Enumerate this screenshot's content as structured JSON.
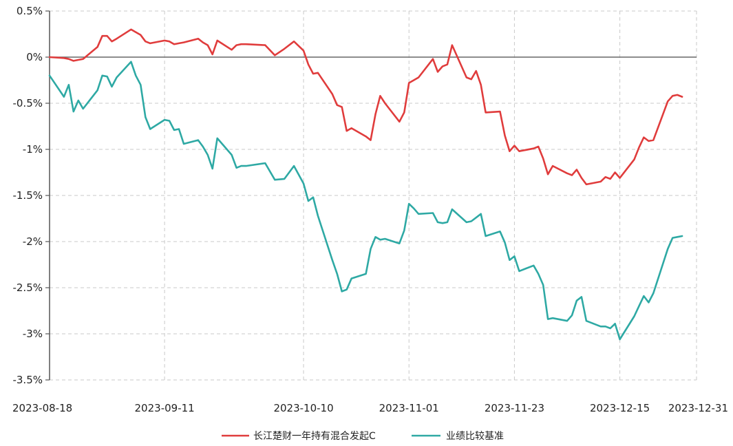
{
  "chart_data": {
    "type": "line",
    "title": "",
    "xlabel": "",
    "ylabel": "",
    "x_range": [
      "2023-08-18",
      "2023-12-31"
    ],
    "ylim": [
      -3.5,
      0.5
    ],
    "y_unit": "%",
    "grid": true,
    "legend_position": "bottom",
    "x_tick_labels": [
      "2023-08-18",
      "2023-09-11",
      "2023-10-10",
      "2023-11-01",
      "2023-11-23",
      "2023-12-15",
      "2023-12-31"
    ],
    "y_tick_labels": [
      "0.5%",
      "0%",
      "-0.5%",
      "-1%",
      "-1.5%",
      "-2%",
      "-2.5%",
      "-3%",
      "-3.5%"
    ],
    "y_ticks": [
      0.5,
      0,
      -0.5,
      -1,
      -1.5,
      -2,
      -2.5,
      -3,
      -3.5
    ],
    "colors": {
      "series1": "#e03c3c",
      "series2": "#2ea9a4"
    },
    "series": [
      {
        "name": "长江楚财一年持有混合发起C",
        "points": [
          [
            "2023-08-18",
            0.0
          ],
          [
            "2023-08-21",
            -0.01
          ],
          [
            "2023-08-22",
            -0.02
          ],
          [
            "2023-08-23",
            -0.04
          ],
          [
            "2023-08-24",
            -0.03
          ],
          [
            "2023-08-25",
            -0.02
          ],
          [
            "2023-08-28",
            0.11
          ],
          [
            "2023-08-29",
            0.23
          ],
          [
            "2023-08-30",
            0.23
          ],
          [
            "2023-08-31",
            0.17
          ],
          [
            "2023-09-01",
            0.2
          ],
          [
            "2023-09-04",
            0.3
          ],
          [
            "2023-09-05",
            0.27
          ],
          [
            "2023-09-06",
            0.24
          ],
          [
            "2023-09-07",
            0.17
          ],
          [
            "2023-09-08",
            0.15
          ],
          [
            "2023-09-11",
            0.18
          ],
          [
            "2023-09-12",
            0.17
          ],
          [
            "2023-09-13",
            0.14
          ],
          [
            "2023-09-14",
            0.15
          ],
          [
            "2023-09-15",
            0.16
          ],
          [
            "2023-09-18",
            0.2
          ],
          [
            "2023-09-19",
            0.16
          ],
          [
            "2023-09-20",
            0.13
          ],
          [
            "2023-09-21",
            0.03
          ],
          [
            "2023-09-22",
            0.18
          ],
          [
            "2023-09-25",
            0.08
          ],
          [
            "2023-09-26",
            0.13
          ],
          [
            "2023-09-27",
            0.14
          ],
          [
            "2023-09-28",
            0.14
          ],
          [
            "2023-10-02",
            0.13
          ],
          [
            "2023-10-04",
            0.02
          ],
          [
            "2023-10-06",
            0.09
          ],
          [
            "2023-10-08",
            0.17
          ],
          [
            "2023-10-10",
            0.07
          ],
          [
            "2023-10-11",
            -0.08
          ],
          [
            "2023-10-12",
            -0.18
          ],
          [
            "2023-10-13",
            -0.17
          ],
          [
            "2023-10-16",
            -0.4
          ],
          [
            "2023-10-17",
            -0.52
          ],
          [
            "2023-10-18",
            -0.54
          ],
          [
            "2023-10-19",
            -0.8
          ],
          [
            "2023-10-20",
            -0.77
          ],
          [
            "2023-10-23",
            -0.86
          ],
          [
            "2023-10-24",
            -0.9
          ],
          [
            "2023-10-25",
            -0.62
          ],
          [
            "2023-10-26",
            -0.42
          ],
          [
            "2023-10-27",
            -0.5
          ],
          [
            "2023-10-30",
            -0.7
          ],
          [
            "2023-10-31",
            -0.6
          ],
          [
            "2023-11-01",
            -0.28
          ],
          [
            "2023-11-02",
            -0.25
          ],
          [
            "2023-11-03",
            -0.22
          ],
          [
            "2023-11-06",
            -0.02
          ],
          [
            "2023-11-07",
            -0.16
          ],
          [
            "2023-11-08",
            -0.1
          ],
          [
            "2023-11-09",
            -0.08
          ],
          [
            "2023-11-10",
            0.13
          ],
          [
            "2023-11-13",
            -0.22
          ],
          [
            "2023-11-14",
            -0.24
          ],
          [
            "2023-11-15",
            -0.15
          ],
          [
            "2023-11-16",
            -0.3
          ],
          [
            "2023-11-17",
            -0.6
          ],
          [
            "2023-11-20",
            -0.59
          ],
          [
            "2023-11-21",
            -0.85
          ],
          [
            "2023-11-22",
            -1.02
          ],
          [
            "2023-11-23",
            -0.96
          ],
          [
            "2023-11-24",
            -1.02
          ],
          [
            "2023-11-27",
            -0.99
          ],
          [
            "2023-11-28",
            -0.97
          ],
          [
            "2023-11-29",
            -1.1
          ],
          [
            "2023-11-30",
            -1.27
          ],
          [
            "2023-12-01",
            -1.18
          ],
          [
            "2023-12-04",
            -1.26
          ],
          [
            "2023-12-05",
            -1.28
          ],
          [
            "2023-12-06",
            -1.22
          ],
          [
            "2023-12-07",
            -1.31
          ],
          [
            "2023-12-08",
            -1.38
          ],
          [
            "2023-12-11",
            -1.35
          ],
          [
            "2023-12-12",
            -1.3
          ],
          [
            "2023-12-13",
            -1.32
          ],
          [
            "2023-12-14",
            -1.25
          ],
          [
            "2023-12-15",
            -1.31
          ],
          [
            "2023-12-18",
            -1.11
          ],
          [
            "2023-12-19",
            -0.98
          ],
          [
            "2023-12-20",
            -0.87
          ],
          [
            "2023-12-21",
            -0.91
          ],
          [
            "2023-12-22",
            -0.9
          ],
          [
            "2023-12-25",
            -0.48
          ],
          [
            "2023-12-26",
            -0.42
          ],
          [
            "2023-12-27",
            -0.41
          ],
          [
            "2023-12-28",
            -0.43
          ]
        ]
      },
      {
        "name": "业绩比较基准",
        "points": [
          [
            "2023-08-18",
            -0.2
          ],
          [
            "2023-08-21",
            -0.43
          ],
          [
            "2023-08-22",
            -0.3
          ],
          [
            "2023-08-23",
            -0.59
          ],
          [
            "2023-08-24",
            -0.47
          ],
          [
            "2023-08-25",
            -0.56
          ],
          [
            "2023-08-28",
            -0.36
          ],
          [
            "2023-08-29",
            -0.2
          ],
          [
            "2023-08-30",
            -0.21
          ],
          [
            "2023-08-31",
            -0.32
          ],
          [
            "2023-09-01",
            -0.22
          ],
          [
            "2023-09-04",
            -0.05
          ],
          [
            "2023-09-05",
            -0.2
          ],
          [
            "2023-09-06",
            -0.3
          ],
          [
            "2023-09-07",
            -0.65
          ],
          [
            "2023-09-08",
            -0.78
          ],
          [
            "2023-09-11",
            -0.68
          ],
          [
            "2023-09-12",
            -0.69
          ],
          [
            "2023-09-13",
            -0.79
          ],
          [
            "2023-09-14",
            -0.78
          ],
          [
            "2023-09-15",
            -0.94
          ],
          [
            "2023-09-18",
            -0.9
          ],
          [
            "2023-09-19",
            -0.97
          ],
          [
            "2023-09-20",
            -1.06
          ],
          [
            "2023-09-21",
            -1.21
          ],
          [
            "2023-09-22",
            -0.88
          ],
          [
            "2023-09-25",
            -1.06
          ],
          [
            "2023-09-26",
            -1.2
          ],
          [
            "2023-09-27",
            -1.18
          ],
          [
            "2023-09-28",
            -1.18
          ],
          [
            "2023-10-02",
            -1.15
          ],
          [
            "2023-10-04",
            -1.33
          ],
          [
            "2023-10-06",
            -1.32
          ],
          [
            "2023-10-08",
            -1.18
          ],
          [
            "2023-10-10",
            -1.37
          ],
          [
            "2023-10-11",
            -1.56
          ],
          [
            "2023-10-12",
            -1.52
          ],
          [
            "2023-10-13",
            -1.72
          ],
          [
            "2023-10-16",
            -2.2
          ],
          [
            "2023-10-17",
            -2.35
          ],
          [
            "2023-10-18",
            -2.54
          ],
          [
            "2023-10-19",
            -2.52
          ],
          [
            "2023-10-20",
            -2.4
          ],
          [
            "2023-10-23",
            -2.35
          ],
          [
            "2023-10-24",
            -2.08
          ],
          [
            "2023-10-25",
            -1.95
          ],
          [
            "2023-10-26",
            -1.98
          ],
          [
            "2023-10-27",
            -1.97
          ],
          [
            "2023-10-30",
            -2.02
          ],
          [
            "2023-10-31",
            -1.88
          ],
          [
            "2023-11-01",
            -1.59
          ],
          [
            "2023-11-02",
            -1.64
          ],
          [
            "2023-11-03",
            -1.7
          ],
          [
            "2023-11-06",
            -1.69
          ],
          [
            "2023-11-07",
            -1.79
          ],
          [
            "2023-11-08",
            -1.8
          ],
          [
            "2023-11-09",
            -1.79
          ],
          [
            "2023-11-10",
            -1.65
          ],
          [
            "2023-11-13",
            -1.79
          ],
          [
            "2023-11-14",
            -1.78
          ],
          [
            "2023-11-15",
            -1.74
          ],
          [
            "2023-11-16",
            -1.7
          ],
          [
            "2023-11-17",
            -1.94
          ],
          [
            "2023-11-20",
            -1.89
          ],
          [
            "2023-11-21",
            -2.01
          ],
          [
            "2023-11-22",
            -2.2
          ],
          [
            "2023-11-23",
            -2.16
          ],
          [
            "2023-11-24",
            -2.32
          ],
          [
            "2023-11-27",
            -2.26
          ],
          [
            "2023-11-28",
            -2.35
          ],
          [
            "2023-11-29",
            -2.47
          ],
          [
            "2023-11-30",
            -2.84
          ],
          [
            "2023-12-01",
            -2.83
          ],
          [
            "2023-12-04",
            -2.86
          ],
          [
            "2023-12-05",
            -2.8
          ],
          [
            "2023-12-06",
            -2.64
          ],
          [
            "2023-12-07",
            -2.6
          ],
          [
            "2023-12-08",
            -2.86
          ],
          [
            "2023-12-11",
            -2.92
          ],
          [
            "2023-12-12",
            -2.92
          ],
          [
            "2023-12-13",
            -2.94
          ],
          [
            "2023-12-14",
            -2.89
          ],
          [
            "2023-12-15",
            -3.06
          ],
          [
            "2023-12-18",
            -2.81
          ],
          [
            "2023-12-19",
            -2.7
          ],
          [
            "2023-12-20",
            -2.59
          ],
          [
            "2023-12-21",
            -2.66
          ],
          [
            "2023-12-22",
            -2.56
          ],
          [
            "2023-12-25",
            -2.08
          ],
          [
            "2023-12-26",
            -1.96
          ],
          [
            "2023-12-27",
            -1.95
          ],
          [
            "2023-12-28",
            -1.94
          ]
        ]
      }
    ]
  }
}
